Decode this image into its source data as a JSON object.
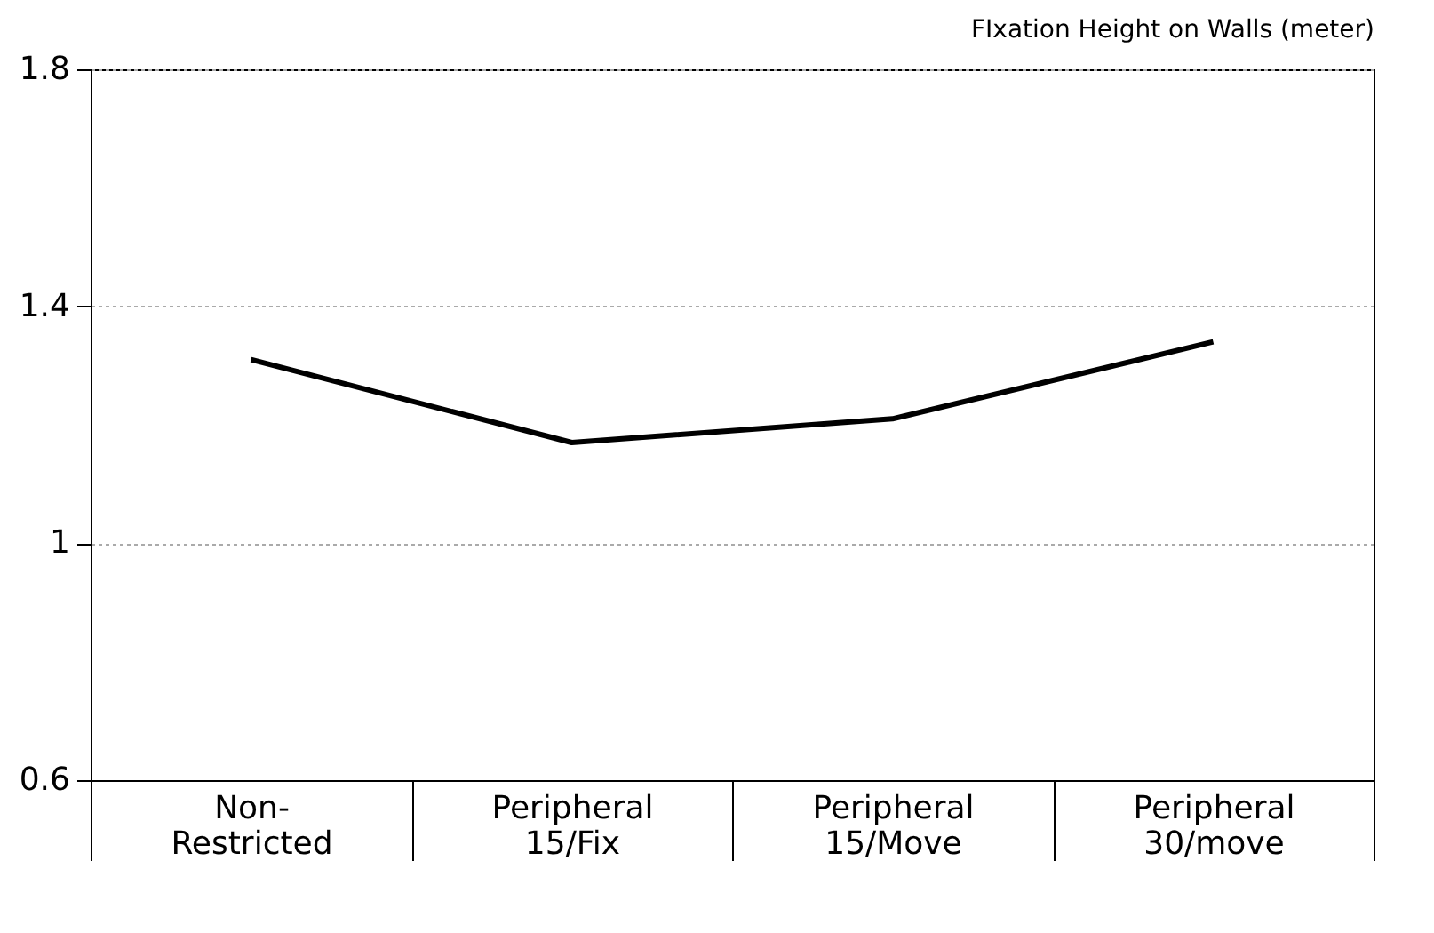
{
  "chart_data": {
    "type": "line",
    "title": "FIxation Height on Walls (meter)",
    "categories": [
      "Non-Restricted",
      "Peripheral 15/Fix",
      "Peripheral 15/Move",
      "Peripheral 30/move"
    ],
    "series": [
      {
        "color": "#000000",
        "values": [
          1.31,
          1.17,
          1.21,
          1.34
        ]
      }
    ],
    "ylim": [
      0.6,
      1.8
    ],
    "yticks": [
      0.6,
      {
        "value": 1,
        "label": "1"
      },
      1.4,
      1.8
    ],
    "grid": "y",
    "marker": "none",
    "line_style": "solid"
  }
}
